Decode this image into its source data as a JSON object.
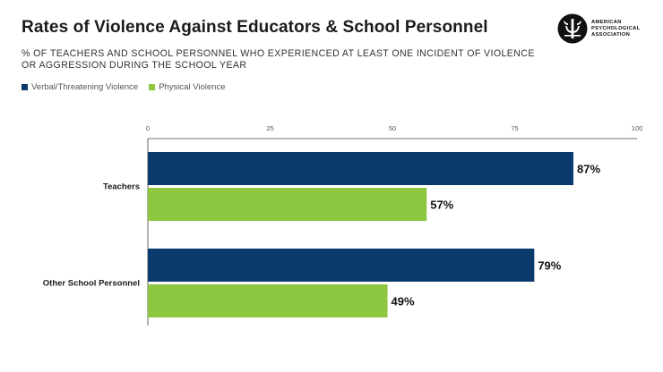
{
  "title": "Rates of Violence Against Educators & School Personnel",
  "subtitle_lines": [
    "% OF TEACHERS AND SCHOOL PERSONNEL WHO EXPERIENCED AT LEAST ONE INCIDENT OF VIOLENCE",
    "OR AGGRESSION DURING THE SCHOOL YEAR"
  ],
  "logo": {
    "lines": [
      "AMERICAN",
      "PSYCHOLOGICAL",
      "ASSOCIATION"
    ]
  },
  "colors": {
    "verbal": "#0b3a6e",
    "physical": "#8dc63f",
    "axis": "#444444",
    "tick_label": "#555555"
  },
  "chart_data": {
    "type": "bar",
    "orientation": "horizontal",
    "categories": [
      "Teachers",
      "Other School Personnel"
    ],
    "series": [
      {
        "name": "Verbal/Threatening Violence",
        "values": [
          87,
          79
        ],
        "labels": [
          "87%",
          "79%"
        ]
      },
      {
        "name": "Physical Violence",
        "values": [
          57,
          49
        ],
        "labels": [
          "57%",
          "49%"
        ]
      }
    ],
    "xlim": [
      0,
      100
    ],
    "xticks": [
      0,
      25,
      50,
      75,
      100
    ],
    "grid": false,
    "legend_position": "top-left",
    "xlabel": "",
    "ylabel": ""
  }
}
